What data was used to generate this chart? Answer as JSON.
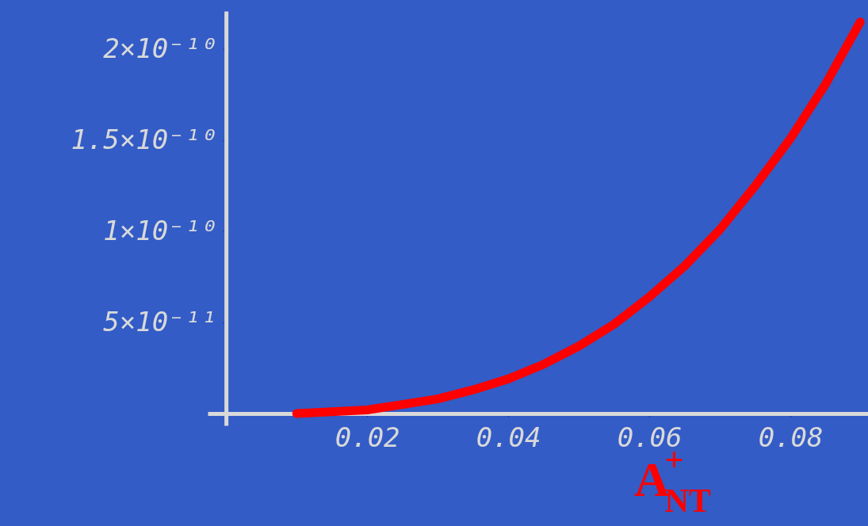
{
  "chart_data": {
    "type": "line",
    "xlabel": "A$^{+}$$_{NT}$",
    "x": [
      0.01,
      0.015,
      0.02,
      0.025,
      0.03,
      0.035,
      0.04,
      0.045,
      0.05,
      0.055,
      0.06,
      0.065,
      0.07,
      0.075,
      0.08,
      0.085,
      0.0899
    ],
    "series": [
      {
        "color": "#ff0000",
        "values": [
          0,
          1e-12,
          2e-12,
          5e-12,
          8e-12,
          1.3e-11,
          1.9e-11,
          2.7e-11,
          3.7e-11,
          4.9e-11,
          6.4e-11,
          8.1e-11,
          1.01e-10,
          1.25e-10,
          1.51e-10,
          1.81e-10,
          2.15e-10
        ]
      }
    ],
    "xlim": [
      -0.0026,
      0.091
    ],
    "ylim": [
      -6.5e-12,
      2.21e-10
    ],
    "xticks": [
      0.02,
      0.04,
      0.06,
      0.08
    ],
    "yticks": [
      {
        "value": 5e-11,
        "label": "5×10⁻¹¹"
      },
      {
        "value": 1e-10,
        "label": "1×10⁻¹⁰"
      },
      {
        "value": 1.5e-10,
        "label": "1.5×10⁻¹⁰"
      },
      {
        "value": 2e-10,
        "label": "2×10⁻¹⁰"
      }
    ],
    "grid": false,
    "marker": "none",
    "line_style": "solid"
  }
}
